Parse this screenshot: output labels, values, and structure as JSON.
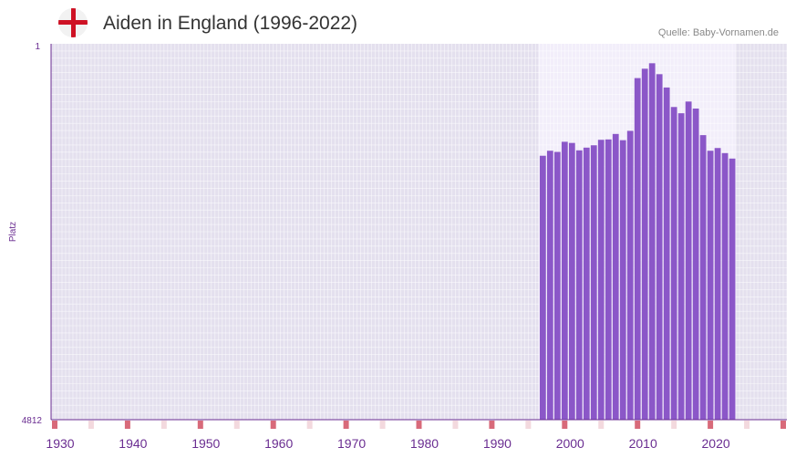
{
  "title": "Aiden in England (1996-2022)",
  "source": "Quelle: Baby-Vornamen.de",
  "icons": {
    "flag": "england-flag-icon"
  },
  "colors": {
    "bar": "#8b57c8",
    "axis": "#6a2d91",
    "tick_marker": "#d86a7a",
    "tick_marker_light": "#f3d9de",
    "plot_bg": "#e4e0ee",
    "plot_bg_highlight": "#f2eefa"
  },
  "chart_data": {
    "type": "bar",
    "title": "Aiden in England (1996-2022)",
    "xlabel": "",
    "ylabel": "Platz",
    "y_axis_reversed": true,
    "ylim": [
      1,
      4812
    ],
    "y_tick_labels": [
      "1",
      "4812"
    ],
    "xlim": [
      1929,
      2029
    ],
    "x_tick_labels": [
      "1930",
      "1940",
      "1950",
      "1960",
      "1970",
      "1980",
      "1990",
      "2000",
      "2010",
      "2020"
    ],
    "x_ticks": [
      1930,
      1940,
      1950,
      1960,
      1970,
      1980,
      1990,
      2000,
      2010,
      2020
    ],
    "highlight_range": [
      1996,
      2022
    ],
    "x": [
      1996,
      1997,
      1998,
      1999,
      2000,
      2001,
      2002,
      2003,
      2004,
      2005,
      2006,
      2007,
      2008,
      2009,
      2010,
      2011,
      2012,
      2013,
      2014,
      2015,
      2016,
      2017,
      2018,
      2019,
      2020,
      2021,
      2022
    ],
    "values": [
      1434,
      1370,
      1385,
      1255,
      1270,
      1365,
      1330,
      1300,
      1230,
      1225,
      1155,
      1235,
      1115,
      440,
      320,
      250,
      390,
      560,
      810,
      890,
      740,
      830,
      1170,
      1370,
      1335,
      1400,
      1470
    ]
  }
}
